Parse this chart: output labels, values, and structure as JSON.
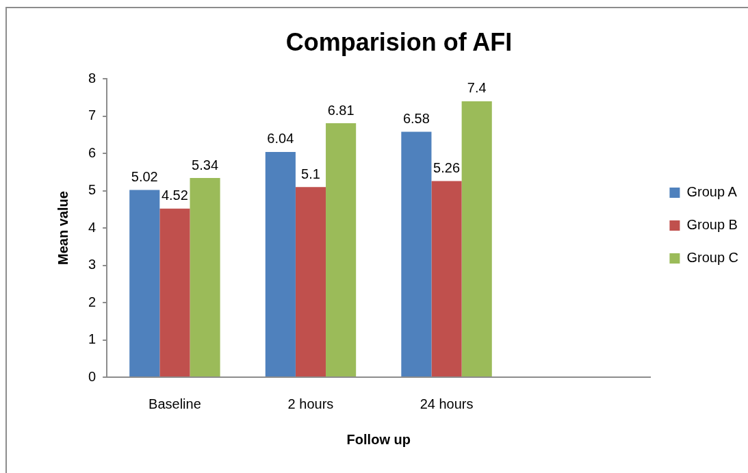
{
  "chart_data": {
    "type": "bar",
    "title": "Comparision of AFI",
    "xlabel": "Follow up",
    "ylabel": "Mean value",
    "categories": [
      "Baseline",
      "2 hours",
      "24 hours",
      null
    ],
    "series": [
      {
        "name": "Group A",
        "color": "#4f81bd",
        "values": [
          5.02,
          6.04,
          6.58,
          null
        ]
      },
      {
        "name": "Group B",
        "color": "#c0504d",
        "values": [
          4.52,
          5.1,
          5.26,
          null
        ]
      },
      {
        "name": "Group C",
        "color": "#9bbb59",
        "values": [
          5.34,
          6.81,
          7.4,
          null
        ]
      }
    ],
    "ylim": [
      0,
      8
    ],
    "yticks": [
      0,
      1,
      2,
      3,
      4,
      5,
      6,
      7,
      8
    ],
    "legend": "right",
    "data_labels": true
  }
}
